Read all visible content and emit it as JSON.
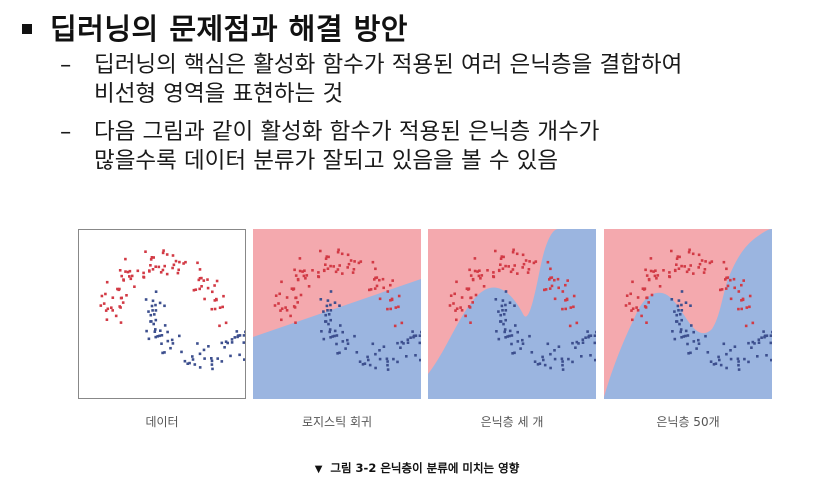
{
  "heading": "딥러닝의 문제점과 해결 방안",
  "bullets": [
    {
      "dash": "–",
      "line1": "딥러닝의 핵심은 활성화 함수가 적용된 여러 은닉층을 결합하여",
      "line2": "비선형 영역을 표현하는 것"
    },
    {
      "dash": "–",
      "line1": "다음 그림과 같이 활성화 함수가 적용된 은닉층 개수가",
      "line2": "많을수록 데이터 분류가 잘되고 있음을 볼 수 있음"
    }
  ],
  "panels": [
    {
      "label": "데이터"
    },
    {
      "label": "로지스틱 회귀"
    },
    {
      "label": "은닉층 세 개"
    },
    {
      "label": "은닉층 50개"
    }
  ],
  "caption": {
    "symbol": "▼",
    "text": "그림 3-2 은닉층이 분류에 미치는 영향"
  },
  "colors": {
    "red_region": "#f4a9ae",
    "blue_region": "#9bb5e0",
    "red_point": "#d23a45",
    "blue_point": "#3d4f8e"
  }
}
